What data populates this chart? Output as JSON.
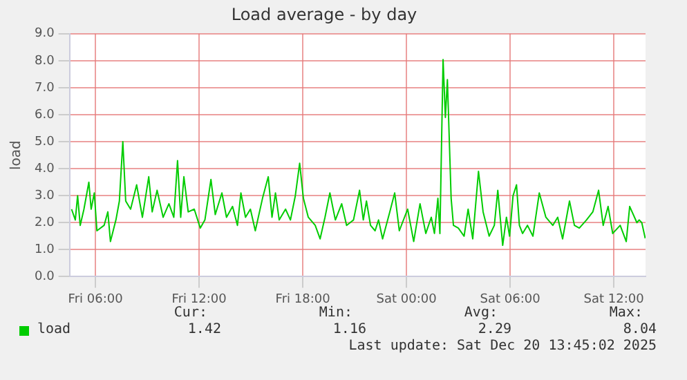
{
  "chart_data": {
    "type": "line",
    "title": "Load average - by day",
    "ylabel": "load",
    "xlim": [
      "2025-12-19T04:30",
      "2025-12-20T13:50"
    ],
    "xticks": [
      {
        "value": "2025-12-19T06:00",
        "label": "Fri 06:00"
      },
      {
        "value": "2025-12-19T12:00",
        "label": "Fri 12:00"
      },
      {
        "value": "2025-12-19T18:00",
        "label": "Fri 18:00"
      },
      {
        "value": "2025-12-20T00:00",
        "label": "Sat 00:00"
      },
      {
        "value": "2025-12-20T06:00",
        "label": "Sat 06:00"
      },
      {
        "value": "2025-12-20T12:00",
        "label": "Sat 12:00"
      }
    ],
    "ylim": [
      0,
      9
    ],
    "yticks": [
      {
        "value": 0,
        "label": "0.0"
      },
      {
        "value": 1,
        "label": "1.0"
      },
      {
        "value": 2,
        "label": "2.0"
      },
      {
        "value": 3,
        "label": "3.0"
      },
      {
        "value": 4,
        "label": "4.0"
      },
      {
        "value": 5,
        "label": "5.0"
      },
      {
        "value": 6,
        "label": "6.0"
      },
      {
        "value": 7,
        "label": "7.0"
      },
      {
        "value": 8,
        "label": "8.0"
      },
      {
        "value": 9,
        "label": "9.0"
      }
    ],
    "grid": true,
    "legend": "bottom",
    "marker": "none",
    "line_style": "solid",
    "series": [
      {
        "name": "load",
        "color": "#00cc00",
        "x": [
          "2025-12-19T04:37",
          "2025-12-19T04:50",
          "2025-12-19T04:58",
          "2025-12-19T05:07",
          "2025-12-19T05:20",
          "2025-12-19T05:37",
          "2025-12-19T05:45",
          "2025-12-19T05:56",
          "2025-12-19T06:05",
          "2025-12-19T06:30",
          "2025-12-19T06:43",
          "2025-12-19T06:52",
          "2025-12-19T07:11",
          "2025-12-19T07:23",
          "2025-12-19T07:35",
          "2025-12-19T07:45",
          "2025-12-19T08:02",
          "2025-12-19T08:23",
          "2025-12-19T08:43",
          "2025-12-19T09:05",
          "2025-12-19T09:17",
          "2025-12-19T09:34",
          "2025-12-19T09:55",
          "2025-12-19T10:15",
          "2025-12-19T10:32",
          "2025-12-19T10:45",
          "2025-12-19T10:56",
          "2025-12-19T11:07",
          "2025-12-19T11:22",
          "2025-12-19T11:43",
          "2025-12-19T12:04",
          "2025-12-19T12:20",
          "2025-12-19T12:41",
          "2025-12-19T12:56",
          "2025-12-19T13:19",
          "2025-12-19T13:35",
          "2025-12-19T13:56",
          "2025-12-19T14:13",
          "2025-12-19T14:25",
          "2025-12-19T14:41",
          "2025-12-19T14:58",
          "2025-12-19T15:15",
          "2025-12-19T15:40",
          "2025-12-19T16:00",
          "2025-12-19T16:13",
          "2025-12-19T16:25",
          "2025-12-19T16:38",
          "2025-12-19T17:00",
          "2025-12-19T17:17",
          "2025-12-19T17:34",
          "2025-12-19T17:49",
          "2025-12-19T18:02",
          "2025-12-19T18:19",
          "2025-12-19T18:43",
          "2025-12-19T19:00",
          "2025-12-19T19:17",
          "2025-12-19T19:34",
          "2025-12-19T19:53",
          "2025-12-19T20:15",
          "2025-12-19T20:32",
          "2025-12-19T20:56",
          "2025-12-19T21:17",
          "2025-12-19T21:30",
          "2025-12-19T21:41",
          "2025-12-19T21:55",
          "2025-12-19T22:11",
          "2025-12-19T22:23",
          "2025-12-19T22:37",
          "2025-12-19T23:02",
          "2025-12-19T23:19",
          "2025-12-19T23:35",
          "2025-12-20T00:04",
          "2025-12-20T00:25",
          "2025-12-20T00:47",
          "2025-12-20T01:07",
          "2025-12-20T01:26",
          "2025-12-20T01:37",
          "2025-12-20T01:49",
          "2025-12-20T01:56",
          "2025-12-20T02:07",
          "2025-12-20T02:15",
          "2025-12-20T02:22",
          "2025-12-20T02:35",
          "2025-12-20T02:43",
          "2025-12-20T03:00",
          "2025-12-20T03:20",
          "2025-12-20T03:34",
          "2025-12-20T03:50",
          "2025-12-20T04:10",
          "2025-12-20T04:26",
          "2025-12-20T04:47",
          "2025-12-20T05:05",
          "2025-12-20T05:17",
          "2025-12-20T05:34",
          "2025-12-20T05:47",
          "2025-12-20T05:58",
          "2025-12-20T06:10",
          "2025-12-20T06:22",
          "2025-12-20T06:32",
          "2025-12-20T06:43",
          "2025-12-20T07:00",
          "2025-12-20T07:19",
          "2025-12-20T07:41",
          "2025-12-20T08:04",
          "2025-12-20T08:28",
          "2025-12-20T08:45",
          "2025-12-20T09:02",
          "2025-12-20T09:26",
          "2025-12-20T09:43",
          "2025-12-20T10:00",
          "2025-12-20T10:25",
          "2025-12-20T10:47",
          "2025-12-20T11:07",
          "2025-12-20T11:23",
          "2025-12-20T11:40",
          "2025-12-20T11:56",
          "2025-12-20T12:22",
          "2025-12-20T12:43",
          "2025-12-20T12:55",
          "2025-12-20T13:20",
          "2025-12-20T13:28",
          "2025-12-20T13:37",
          "2025-12-20T13:49"
        ],
        "values": [
          2.5,
          2.1,
          3.0,
          1.9,
          2.5,
          3.5,
          2.5,
          3.1,
          1.7,
          1.9,
          2.4,
          1.3,
          2.1,
          2.8,
          5.0,
          2.8,
          2.5,
          3.4,
          2.2,
          3.7,
          2.4,
          3.2,
          2.2,
          2.7,
          2.2,
          4.3,
          2.2,
          3.7,
          2.4,
          2.5,
          1.8,
          2.1,
          3.6,
          2.3,
          3.1,
          2.2,
          2.6,
          1.9,
          3.1,
          2.2,
          2.5,
          1.7,
          2.9,
          3.7,
          2.2,
          3.1,
          2.1,
          2.5,
          2.1,
          3.0,
          4.2,
          2.9,
          2.2,
          1.9,
          1.4,
          2.2,
          3.1,
          2.1,
          2.7,
          1.9,
          2.1,
          3.2,
          2.1,
          2.8,
          1.9,
          1.7,
          2.1,
          1.4,
          2.4,
          3.1,
          1.7,
          2.5,
          1.3,
          2.7,
          1.6,
          2.2,
          1.6,
          2.9,
          1.6,
          8.04,
          5.9,
          7.3,
          2.9,
          1.9,
          1.8,
          1.5,
          2.5,
          1.4,
          3.9,
          2.4,
          1.5,
          1.9,
          3.2,
          1.16,
          2.2,
          1.5,
          3.0,
          3.4,
          1.9,
          1.6,
          1.9,
          1.5,
          3.1,
          2.2,
          1.9,
          2.2,
          1.4,
          2.8,
          1.9,
          1.8,
          2.1,
          2.4,
          3.2,
          1.9,
          2.6,
          1.6,
          1.9,
          1.3,
          2.6,
          2.0,
          2.1,
          2.0,
          1.42
        ]
      }
    ],
    "annotations": [
      "Cur: 1.42",
      "Min: 1.16",
      "Avg: 2.29",
      "Max: 8.04",
      "Last update: Sat Dec 20 13:45:02 2025"
    ]
  }
}
